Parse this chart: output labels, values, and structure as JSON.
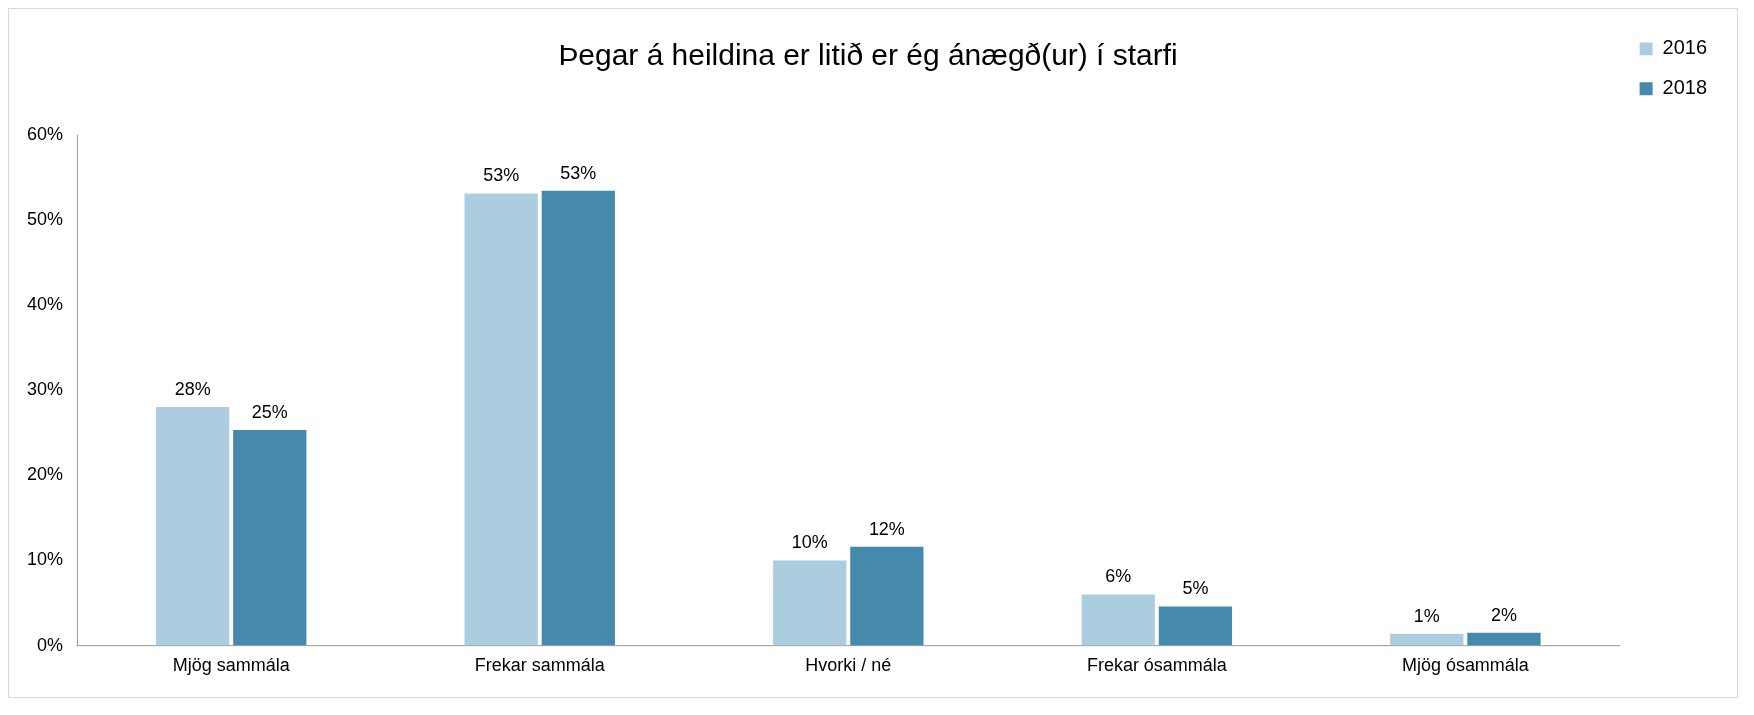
{
  "chart_data": {
    "type": "bar",
    "title": "Þegar á heildina er litið er ég ánægð(ur) í starfi",
    "categories": [
      "Mjög sammála",
      "Frekar sammála",
      "Hvorki / né",
      "Frekar ósammála",
      "Mjög ósammála"
    ],
    "series": [
      {
        "name": "2016",
        "color": "#abcddf",
        "values": [
          28,
          53.1,
          10,
          6,
          1.4
        ],
        "value_labels": [
          "28%",
          "53%",
          "10%",
          "6%",
          "1%"
        ]
      },
      {
        "name": "2018",
        "color": "#4589ad",
        "values": [
          25.3,
          53.4,
          11.6,
          4.6,
          1.5
        ],
        "value_labels": [
          "25%",
          "53%",
          "12%",
          "5%",
          "2%"
        ]
      }
    ],
    "ylim": [
      0,
      60
    ],
    "yticks": [
      {
        "value": 0,
        "label": "0%"
      },
      {
        "value": 10,
        "label": "10%"
      },
      {
        "value": 20,
        "label": "20%"
      },
      {
        "value": 30,
        "label": "30%"
      },
      {
        "value": 40,
        "label": "40%"
      },
      {
        "value": 50,
        "label": "50%"
      },
      {
        "value": 60,
        "label": "60%"
      }
    ],
    "grid": false,
    "legend": "top right"
  }
}
